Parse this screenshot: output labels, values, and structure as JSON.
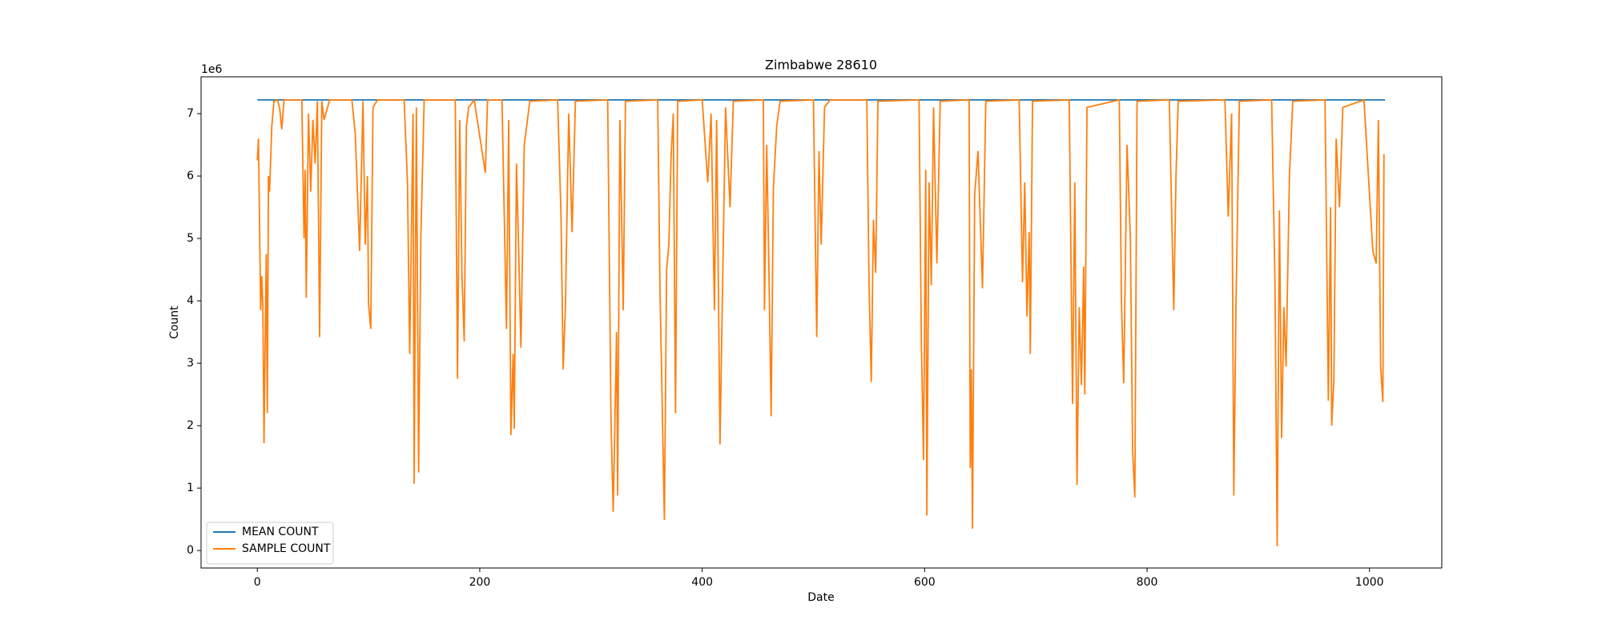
{
  "chart_data": {
    "type": "line",
    "title": "Zimbabwe 28610",
    "xlabel": "Date",
    "ylabel": "Count",
    "y_offset_label": "1e6",
    "xlim": [
      -50.6,
      1065
    ],
    "ylim": [
      -0.28,
      7.59
    ],
    "xticks": [
      0,
      200,
      400,
      600,
      800,
      1000
    ],
    "yticks": [
      0,
      1,
      2,
      3,
      4,
      5,
      6,
      7
    ],
    "legend": "lower left",
    "series": [
      {
        "name": "MEAN COUNT",
        "color": "#1f77b4",
        "x": [
          0,
          1014
        ],
        "values": [
          7.22,
          7.22
        ]
      },
      {
        "name": "SAMPLE COUNT",
        "color": "#ff7f0e",
        "x": [
          0,
          1,
          3,
          4,
          5,
          6,
          8,
          9,
          10,
          11,
          13,
          15,
          18,
          20,
          22,
          24,
          40,
          42,
          43,
          44,
          46,
          48,
          50,
          52,
          54,
          56,
          58,
          60,
          65,
          85,
          88,
          92,
          95,
          97,
          99,
          100,
          102,
          104,
          108,
          132,
          135,
          137,
          140,
          141,
          143,
          145,
          147,
          150,
          178,
          180,
          182,
          184,
          186,
          188,
          190,
          195,
          205,
          207,
          220,
          224,
          226,
          228,
          230,
          231,
          233,
          235,
          237,
          240,
          245,
          270,
          273,
          275,
          277,
          280,
          283,
          286,
          315,
          318,
          320,
          323,
          324,
          326,
          329,
          331,
          360,
          362,
          366,
          368,
          370,
          372,
          374,
          376,
          378,
          400,
          405,
          408,
          411,
          413,
          416,
          418,
          421,
          425,
          428,
          455,
          456,
          458,
          460,
          462,
          464,
          467,
          470,
          500,
          503,
          505,
          507,
          510,
          515,
          548,
          550,
          552,
          554,
          556,
          558,
          595,
          597,
          599,
          601,
          602,
          604,
          606,
          608,
          611,
          614,
          640,
          641,
          642,
          643,
          645,
          648,
          652,
          655,
          685,
          688,
          690,
          692,
          694,
          695,
          697,
          730,
          733,
          735,
          737,
          739,
          741,
          743,
          744,
          746,
          775,
          777,
          779,
          782,
          785,
          787,
          789,
          791,
          820,
          822,
          824,
          826,
          828,
          870,
          873,
          876,
          878,
          880,
          883,
          912,
          915,
          917,
          919,
          921,
          923,
          925,
          928,
          931,
          960,
          963,
          965,
          966,
          968,
          970,
          973,
          976,
          995,
          1003,
          1006,
          1008,
          1010,
          1012,
          1013
        ],
        "values": [
          6.25,
          6.6,
          3.85,
          4.4,
          3.9,
          1.72,
          4.75,
          2.2,
          6.0,
          5.75,
          6.8,
          7.2,
          7.22,
          7.1,
          6.75,
          7.22,
          7.22,
          5.0,
          6.1,
          4.05,
          7.0,
          5.75,
          6.9,
          6.2,
          7.2,
          3.42,
          7.2,
          6.9,
          7.22,
          7.22,
          6.7,
          4.8,
          7.2,
          4.9,
          6.0,
          3.95,
          3.55,
          7.1,
          7.22,
          7.22,
          5.9,
          3.15,
          7.0,
          1.07,
          7.1,
          1.25,
          5.0,
          7.22,
          7.22,
          2.75,
          6.9,
          4.4,
          3.35,
          6.8,
          7.1,
          7.22,
          6.05,
          7.22,
          7.22,
          3.55,
          6.9,
          1.85,
          3.15,
          1.95,
          6.2,
          4.8,
          3.25,
          6.5,
          7.2,
          7.22,
          5.4,
          2.9,
          3.9,
          7.0,
          5.1,
          7.2,
          7.22,
          2.1,
          0.62,
          3.5,
          0.88,
          6.9,
          3.85,
          7.2,
          7.22,
          4.25,
          0.49,
          4.5,
          4.9,
          6.3,
          7.0,
          2.2,
          7.2,
          7.22,
          5.9,
          7.0,
          3.85,
          6.9,
          1.7,
          3.9,
          7.1,
          5.5,
          7.2,
          7.22,
          3.85,
          6.5,
          4.5,
          2.15,
          5.8,
          6.8,
          7.2,
          7.22,
          3.42,
          6.4,
          4.9,
          7.1,
          7.22,
          7.22,
          4.3,
          2.7,
          5.3,
          4.45,
          7.2,
          7.22,
          3.4,
          1.45,
          6.1,
          0.56,
          5.9,
          4.25,
          7.1,
          4.6,
          7.2,
          7.22,
          1.32,
          2.9,
          0.35,
          5.7,
          6.4,
          4.2,
          7.2,
          7.22,
          4.3,
          5.9,
          3.75,
          5.1,
          3.15,
          7.2,
          7.22,
          2.35,
          5.9,
          1.05,
          3.9,
          2.65,
          4.55,
          2.5,
          7.1,
          7.22,
          3.95,
          2.68,
          6.5,
          5.0,
          1.6,
          0.85,
          7.2,
          7.22,
          5.5,
          3.85,
          6.0,
          7.2,
          7.22,
          5.35,
          7.0,
          0.88,
          4.0,
          7.2,
          7.22,
          4.3,
          0.07,
          5.45,
          1.8,
          3.9,
          2.95,
          6.0,
          7.2,
          7.22,
          2.4,
          5.5,
          2.0,
          2.75,
          6.6,
          5.5,
          7.1,
          7.22,
          4.8,
          4.6,
          6.9,
          2.95,
          2.38,
          6.35
        ]
      }
    ]
  }
}
